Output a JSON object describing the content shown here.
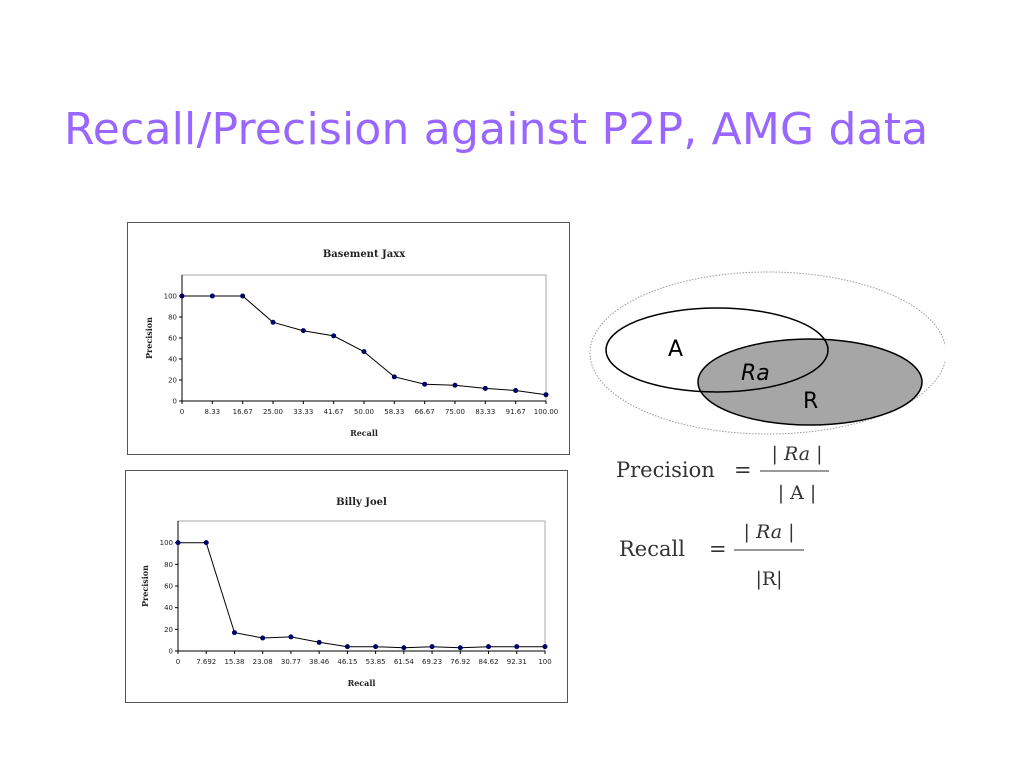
{
  "slide": {
    "title": "Recall/Precision against P2P, AMG data"
  },
  "chart_data": [
    {
      "type": "line",
      "title": "Basement Jaxx",
      "xlabel": "Recall",
      "ylabel": "Precision",
      "categories": [
        "0",
        "8.33",
        "16.67",
        "25.00",
        "33.33",
        "41.67",
        "50.00",
        "58.33",
        "66.67",
        "75.00",
        "83.33",
        "91.67",
        "100.00"
      ],
      "values": [
        100,
        100,
        100,
        75,
        67,
        62,
        47,
        23,
        16,
        15,
        12,
        10,
        6
      ],
      "ylim": [
        0,
        120
      ],
      "yticks": [
        0,
        20,
        40,
        60,
        80,
        100
      ],
      "grid": false,
      "legend": "none"
    },
    {
      "type": "line",
      "title": "Billy Joel",
      "xlabel": "Recall",
      "ylabel": "Precision",
      "categories": [
        "0",
        "7.692",
        "15.38",
        "23.08",
        "30.77",
        "38.46",
        "46.15",
        "53.85",
        "61.54",
        "69.23",
        "76.92",
        "84.62",
        "92.31",
        "100"
      ],
      "values": [
        100,
        100,
        17,
        12,
        13,
        8,
        4,
        4,
        3,
        4,
        3,
        4,
        4,
        4
      ],
      "ylim": [
        0,
        120
      ],
      "yticks": [
        0,
        20,
        40,
        60,
        80,
        100
      ],
      "grid": false,
      "legend": "none"
    }
  ],
  "venn": {
    "set_a": "A",
    "set_r": "R",
    "intersection": "Ra"
  },
  "formulas": {
    "precision": {
      "lhs": "Precision",
      "equals": "=",
      "numerator": "| Ra |",
      "denominator": "| A |"
    },
    "recall": {
      "lhs": "Recall",
      "equals": "=",
      "numerator": "| Ra |",
      "denominator": "|R|"
    }
  },
  "colors": {
    "title": "#9966ff",
    "line": "#000000",
    "marker": "#000066",
    "venn_fill": "#a6a6a6"
  }
}
